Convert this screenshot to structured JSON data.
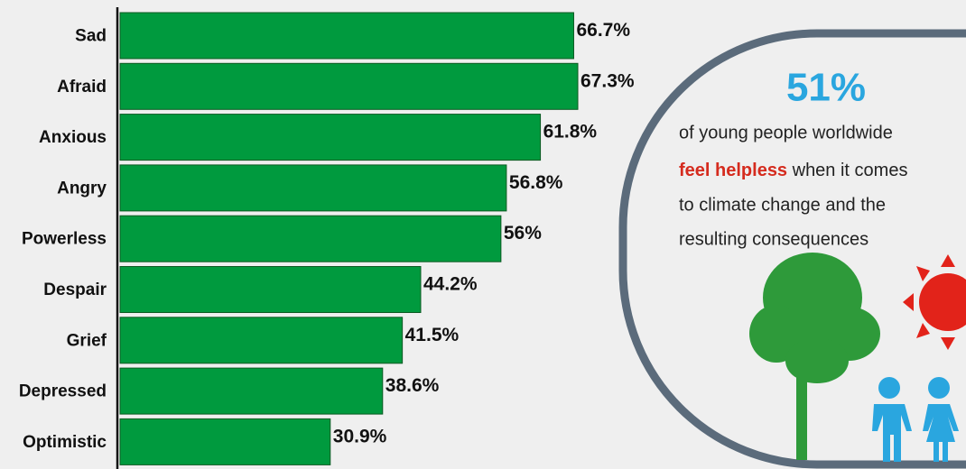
{
  "chart_data": {
    "type": "bar",
    "orientation": "horizontal",
    "categories": [
      "Sad",
      "Afraid",
      "Anxious",
      "Angry",
      "Powerless",
      "Despair",
      "Grief",
      "Depressed",
      "Optimistic"
    ],
    "values": [
      66.7,
      67.3,
      61.8,
      56.8,
      56,
      44.2,
      41.5,
      38.6,
      30.9
    ],
    "value_labels": [
      "66.7%",
      "67.3%",
      "61.8%",
      "56.8%",
      "56%",
      "44.2%",
      "41.5%",
      "38.6%",
      "30.9%"
    ],
    "color": "#009a3e"
  },
  "callout": {
    "stat": "51%",
    "line1": "of young people worldwide",
    "highlight": "feel helpless",
    "line2_rest": " when it comes",
    "line3": "to climate change and the",
    "line4": "resulting consequences"
  }
}
